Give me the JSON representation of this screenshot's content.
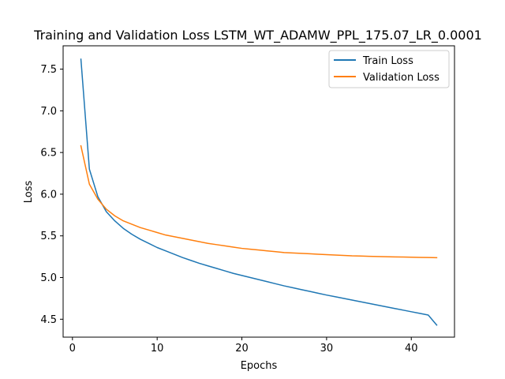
{
  "chart_data": {
    "type": "line",
    "title": "Training and Validation Loss LSTM_WT_ADAMW_PPL_175.07_LR_0.0001",
    "xlabel": "Epochs",
    "ylabel": "Loss",
    "xlim": [
      -1.1,
      45.1
    ],
    "ylim": [
      4.285,
      7.78
    ],
    "xticks": [
      0,
      10,
      20,
      30,
      40
    ],
    "yticks": [
      4.5,
      5.0,
      5.5,
      6.0,
      6.5,
      7.0,
      7.5
    ],
    "ytick_labels": [
      "4.5",
      "5.0",
      "5.5",
      "6.0",
      "6.5",
      "7.0",
      "7.5"
    ],
    "grid": false,
    "legend_position": "top-right",
    "x": [
      1,
      2,
      3,
      4,
      5,
      6,
      7,
      8,
      9,
      10,
      11,
      12,
      13,
      14,
      15,
      16,
      17,
      18,
      19,
      20,
      21,
      22,
      23,
      24,
      25,
      26,
      27,
      28,
      29,
      30,
      31,
      32,
      33,
      34,
      35,
      36,
      37,
      38,
      39,
      40,
      41,
      42,
      43
    ],
    "series": [
      {
        "name": "Train Loss",
        "color": "#1f77b4",
        "values": [
          7.62,
          6.3,
          5.97,
          5.79,
          5.68,
          5.59,
          5.52,
          5.46,
          5.41,
          5.36,
          5.32,
          5.28,
          5.24,
          5.205,
          5.17,
          5.14,
          5.11,
          5.08,
          5.05,
          5.025,
          5.0,
          4.975,
          4.95,
          4.925,
          4.9,
          4.878,
          4.856,
          4.834,
          4.812,
          4.79,
          4.77,
          4.75,
          4.73,
          4.71,
          4.69,
          4.67,
          4.65,
          4.63,
          4.61,
          4.59,
          4.57,
          4.55,
          4.43
        ]
      },
      {
        "name": "Validation Loss",
        "color": "#ff7f0e",
        "values": [
          6.58,
          6.12,
          5.94,
          5.82,
          5.74,
          5.68,
          5.64,
          5.6,
          5.57,
          5.54,
          5.51,
          5.49,
          5.47,
          5.45,
          5.43,
          5.41,
          5.395,
          5.38,
          5.365,
          5.35,
          5.34,
          5.33,
          5.32,
          5.31,
          5.3,
          5.295,
          5.29,
          5.285,
          5.28,
          5.275,
          5.27,
          5.265,
          5.26,
          5.258,
          5.255,
          5.252,
          5.25,
          5.248,
          5.246,
          5.244,
          5.242,
          5.24,
          5.238
        ]
      }
    ]
  }
}
